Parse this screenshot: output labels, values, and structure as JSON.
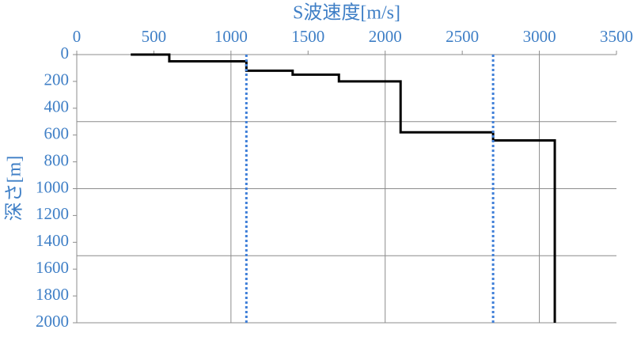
{
  "chart_data": {
    "type": "line",
    "xlabel": "S波速度[m/s]",
    "ylabel": "深さ[m]",
    "xlim": [
      0,
      3500
    ],
    "xticks": [
      0,
      500,
      1000,
      1500,
      2000,
      2500,
      3000,
      3500
    ],
    "ylim": [
      0,
      2000
    ],
    "yticks": [
      0,
      200,
      400,
      600,
      800,
      1000,
      1200,
      1400,
      1600,
      1800,
      2000
    ],
    "y_inverted": true,
    "x_axis_position": "top",
    "xgrid": [
      1000,
      2000,
      3000
    ],
    "ygrid": [
      500,
      1000,
      1500,
      2000
    ],
    "label_color": "#3f7fc6",
    "series": [
      {
        "color": "#000000",
        "style": "solid",
        "x": [
          350,
          600,
          600,
          1100,
          1100,
          1400,
          1400,
          1700,
          1700,
          2100,
          2100,
          2700,
          2700,
          3100,
          3100
        ],
        "values": [
          0,
          0,
          50,
          50,
          120,
          120,
          150,
          150,
          200,
          200,
          580,
          580,
          640,
          640,
          2000
        ]
      },
      {
        "color": "#3f7fd8",
        "style": "dotted",
        "x": [
          1100,
          1100
        ],
        "values": [
          0,
          2000
        ]
      },
      {
        "color": "#3f7fd8",
        "style": "dotted",
        "x": [
          2700,
          2700
        ],
        "values": [
          0,
          2000
        ]
      }
    ]
  }
}
